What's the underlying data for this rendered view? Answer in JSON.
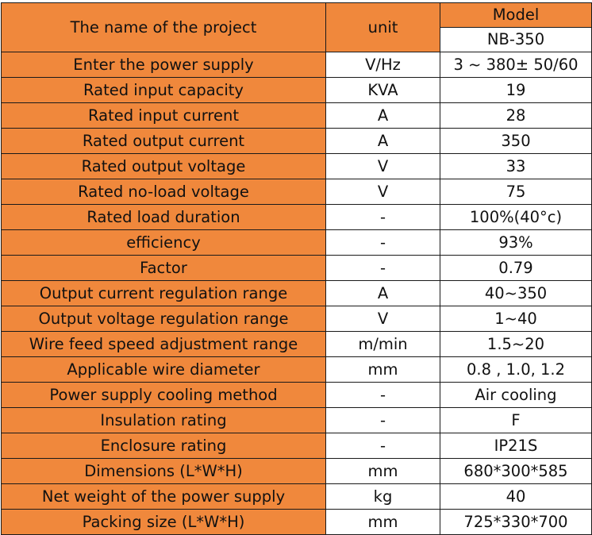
{
  "header": {
    "name_label": "The name of the project",
    "unit_label": "unit",
    "model_label": "Model",
    "model_value": "NB-350"
  },
  "rows": [
    {
      "name": "Enter the power supply",
      "unit": "V/Hz",
      "value": "3 ~ 380± 50/60"
    },
    {
      "name": "Rated input capacity",
      "unit": "KVA",
      "value": "19"
    },
    {
      "name": "Rated input current",
      "unit": "A",
      "value": "28"
    },
    {
      "name": "Rated output current",
      "unit": "A",
      "value": "350"
    },
    {
      "name": "Rated output voltage",
      "unit": "V",
      "value": "33"
    },
    {
      "name": "Rated no-load voltage",
      "unit": "V",
      "value": "75"
    },
    {
      "name": "Rated load duration",
      "unit": "-",
      "value": "100%(40°c)"
    },
    {
      "name": "efficiency",
      "unit": "-",
      "value": "93%"
    },
    {
      "name": "Factor",
      "unit": "-",
      "value": "0.79"
    },
    {
      "name": "Output current regulation range",
      "unit": "A",
      "value": "40~350"
    },
    {
      "name": "Output voltage regulation range",
      "unit": "V",
      "value": "1~40"
    },
    {
      "name": "Wire feed speed adjustment range",
      "unit": "m/min",
      "value": "1.5~20"
    },
    {
      "name": "Applicable wire diameter",
      "unit": "mm",
      "value": "0.8 , 1.0, 1.2"
    },
    {
      "name": "Power supply cooling method",
      "unit": "-",
      "value": "Air cooling"
    },
    {
      "name": "Insulation rating",
      "unit": "-",
      "value": "F"
    },
    {
      "name": "Enclosure rating",
      "unit": "-",
      "value": "IP21S"
    },
    {
      "name": "Dimensions (L*W*H)",
      "unit": "mm",
      "value": "680*300*585"
    },
    {
      "name": "Net weight of the power supply",
      "unit": "kg",
      "value": "40"
    },
    {
      "name": "Packing size (L*W*H)",
      "unit": "mm",
      "value": "725*330*700"
    }
  ],
  "colors": {
    "name_fill": "#f0883c",
    "border": "#1a1a1a"
  }
}
